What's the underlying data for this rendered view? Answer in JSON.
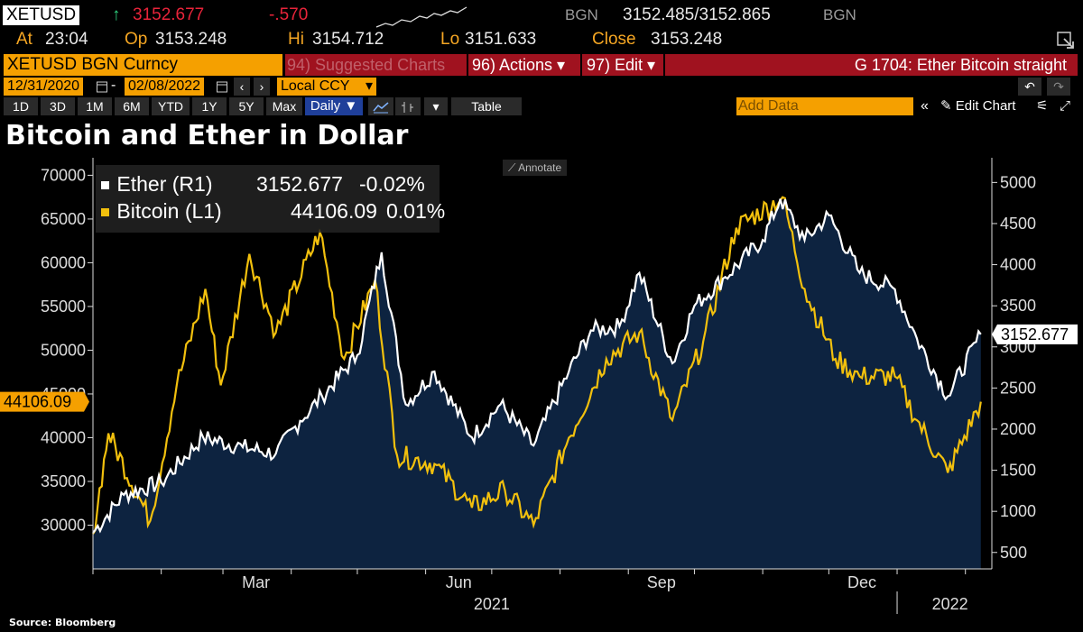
{
  "header": {
    "ticker": "XETUSD",
    "arrow": "↑",
    "last": "3152.677",
    "change": "-.570",
    "source1": "BGN",
    "bid_ask": "3152.485/3152.865",
    "source2": "BGN",
    "at_label": "At",
    "at_value": "23:04",
    "op_label": "Op",
    "op_value": "3153.248",
    "hi_label": "Hi",
    "hi_value": "3154.712",
    "lo_label": "Lo",
    "lo_value": "3151.633",
    "close_label": "Close",
    "close_value": "3153.248"
  },
  "toolbar": {
    "security": "XETUSD BGN Curncy",
    "suggested": "94) Suggested Charts",
    "actions": "96) Actions ▾",
    "edit": "97) Edit ▾",
    "chart_id": "G 1704: Ether Bitcoin straight",
    "start_date": "12/31/2020",
    "end_date": "02/08/2022",
    "currency": "Local CCY",
    "periods": [
      "1D",
      "3D",
      "1M",
      "6M",
      "YTD",
      "1Y",
      "5Y",
      "Max"
    ],
    "frequency": "Daily ▼",
    "table": "Table",
    "add_data_placeholder": "Add Data",
    "edit_chart": "Edit Chart",
    "annotate": "Annotate"
  },
  "source": "Source: Bloomberg",
  "colors": {
    "ether": "#ffffff",
    "bitcoin": "#f2c00d",
    "area": "#0d2340",
    "orange": "#f5a000"
  },
  "chart_data": {
    "type": "line",
    "title": "Bitcoin and Ether in Dollar",
    "x_tick_labels": [
      "Mar",
      "Jun",
      "Sep",
      "Dec"
    ],
    "x_year_labels": [
      "2021",
      "2022"
    ],
    "left_axis": {
      "ylim": [
        25000,
        72000
      ],
      "ticks": [
        30000,
        35000,
        40000,
        45000,
        50000,
        55000,
        60000,
        65000,
        70000
      ]
    },
    "right_axis": {
      "ylim": [
        300,
        5300
      ],
      "ticks": [
        500,
        1000,
        1500,
        2000,
        2500,
        3000,
        3500,
        4000,
        4500,
        5000
      ]
    },
    "series": [
      {
        "name": "Ether (R1)",
        "axis": "right",
        "legend_value": "3152.677",
        "legend_change": "-0.02%",
        "last_label": "3152.677",
        "x": [
          "2021-01-01",
          "2021-01-15",
          "2021-02-01",
          "2021-02-20",
          "2021-03-10",
          "2021-03-25",
          "2021-04-05",
          "2021-04-15",
          "2021-05-01",
          "2021-05-12",
          "2021-05-23",
          "2021-06-05",
          "2021-06-22",
          "2021-07-05",
          "2021-07-20",
          "2021-08-05",
          "2021-08-15",
          "2021-08-28",
          "2021-09-06",
          "2021-09-21",
          "2021-10-01",
          "2021-10-15",
          "2021-11-01",
          "2021-11-09",
          "2021-11-20",
          "2021-12-01",
          "2021-12-15",
          "2021-12-31",
          "2022-01-10",
          "2022-01-24",
          "2022-02-08"
        ],
        "y": [
          740,
          1200,
          1350,
          1900,
          1780,
          1700,
          2100,
          2400,
          2900,
          4150,
          2300,
          2700,
          1900,
          2300,
          1800,
          2700,
          3200,
          3250,
          3900,
          2800,
          3500,
          3850,
          4300,
          4800,
          4300,
          4600,
          3900,
          3700,
          3100,
          2400,
          3152.677
        ]
      },
      {
        "name": "Bitcoin (L1)",
        "axis": "left",
        "legend_value": "44106.09",
        "legend_change": "0.01%",
        "last_label": "44106.09",
        "x": [
          "2021-01-01",
          "2021-01-08",
          "2021-01-27",
          "2021-02-08",
          "2021-02-21",
          "2021-02-28",
          "2021-03-13",
          "2021-03-25",
          "2021-04-14",
          "2021-04-25",
          "2021-05-09",
          "2021-05-19",
          "2021-06-05",
          "2021-06-22",
          "2021-07-07",
          "2021-07-20",
          "2021-08-05",
          "2021-08-22",
          "2021-09-06",
          "2021-09-21",
          "2021-10-05",
          "2021-10-20",
          "2021-11-10",
          "2021-11-20",
          "2021-12-04",
          "2021-12-15",
          "2021-12-31",
          "2022-01-10",
          "2022-01-24",
          "2022-02-08"
        ],
        "y": [
          29000,
          40500,
          30500,
          46000,
          57000,
          46000,
          61000,
          52000,
          63500,
          49000,
          58000,
          38000,
          37000,
          32000,
          34000,
          30000,
          40000,
          49000,
          52000,
          42000,
          51000,
          64000,
          67500,
          57000,
          49000,
          47000,
          47000,
          42000,
          36000,
          44106.09
        ]
      }
    ]
  }
}
